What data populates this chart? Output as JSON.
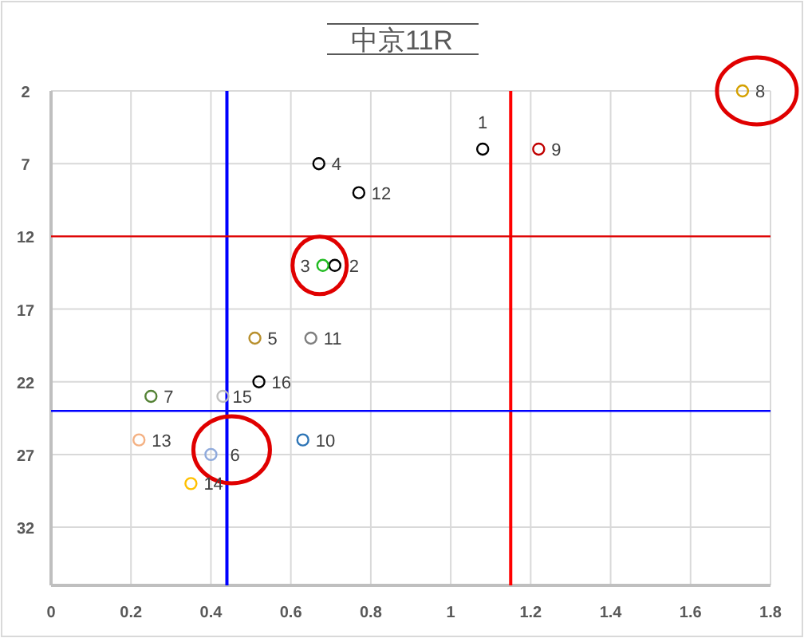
{
  "chart_data": {
    "type": "scatter",
    "title": "中京11R",
    "series": [
      {
        "name": "1",
        "color": "#000000",
        "x": [
          1.08
        ],
        "values": [
          6
        ]
      },
      {
        "name": "2",
        "color": "#000000",
        "x": [
          0.71
        ],
        "values": [
          14
        ]
      },
      {
        "name": "3",
        "color": "#22bb22",
        "x": [
          0.68
        ],
        "values": [
          14
        ]
      },
      {
        "name": "4",
        "color": "#000000",
        "x": [
          0.67
        ],
        "values": [
          7
        ]
      },
      {
        "name": "5",
        "color": "#b8902e",
        "x": [
          0.51
        ],
        "values": [
          19
        ]
      },
      {
        "name": "6",
        "color": "#8faadc",
        "x": [
          0.4
        ],
        "values": [
          27
        ]
      },
      {
        "name": "7",
        "color": "#548235",
        "x": [
          0.25
        ],
        "values": [
          23
        ]
      },
      {
        "name": "8",
        "color": "#d4a000",
        "x": [
          1.73
        ],
        "values": [
          2
        ]
      },
      {
        "name": "9",
        "color": "#c00000",
        "x": [
          1.22
        ],
        "values": [
          6
        ]
      },
      {
        "name": "10",
        "color": "#2e75b6",
        "x": [
          0.63
        ],
        "values": [
          26
        ]
      },
      {
        "name": "11",
        "color": "#7f7f7f",
        "x": [
          0.65
        ],
        "values": [
          19
        ]
      },
      {
        "name": "12",
        "color": "#000000",
        "x": [
          0.77
        ],
        "values": [
          9
        ]
      },
      {
        "name": "13",
        "color": "#f4b183",
        "x": [
          0.22
        ],
        "values": [
          26
        ]
      },
      {
        "name": "14",
        "color": "#ffc000",
        "x": [
          0.35
        ],
        "values": [
          29
        ]
      },
      {
        "name": "15",
        "color": "#bfbfbf",
        "x": [
          0.43
        ],
        "values": [
          23
        ]
      },
      {
        "name": "16",
        "color": "#000000",
        "x": [
          0.52
        ],
        "values": [
          22
        ]
      }
    ],
    "marker": "circle",
    "xlim": [
      0,
      1.8
    ],
    "xticks": [
      0,
      0.2,
      0.4,
      0.6,
      0.8,
      1,
      1.2,
      1.4,
      1.6,
      1.8
    ],
    "ylim": [
      36,
      2
    ],
    "yticks": [
      2,
      7,
      12,
      17,
      22,
      27,
      32
    ],
    "grid": true,
    "ref_lines": [
      {
        "axis": "x",
        "value": 0.44,
        "color": "#0000ff"
      },
      {
        "axis": "x",
        "value": 1.15,
        "color": "#ff0000"
      },
      {
        "axis": "y",
        "value": 12,
        "color": "#e00000"
      },
      {
        "axis": "y",
        "value": 24,
        "color": "#0000ff"
      }
    ]
  }
}
